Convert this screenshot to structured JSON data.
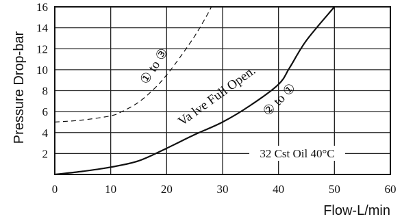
{
  "chart_data": {
    "type": "line",
    "xlabel": "Flow-L/min",
    "ylabel": "Pressure Drop-bar",
    "xlim": [
      0,
      60
    ],
    "ylim": [
      0,
      16
    ],
    "x_ticks": [
      "0",
      "10",
      "20",
      "30",
      "40",
      "50",
      "60"
    ],
    "y_ticks": [
      "2",
      "4",
      "6",
      "8",
      "10",
      "12",
      "14",
      "16"
    ],
    "grid": true,
    "series": [
      {
        "name": "2 to 1",
        "style": "solid",
        "x": [
          0,
          5,
          10,
          15,
          20,
          25,
          30,
          35,
          40,
          42,
          45,
          50
        ],
        "y": [
          0,
          0.3,
          0.7,
          1.3,
          2.5,
          3.8,
          5.0,
          6.6,
          8.6,
          10.2,
          12.8,
          16.0
        ]
      },
      {
        "name": "1 to 3",
        "style": "dashed",
        "x": [
          0,
          5,
          10,
          12,
          15,
          18,
          20,
          22,
          25,
          27,
          28
        ],
        "y": [
          5.0,
          5.2,
          5.6,
          6.0,
          6.9,
          8.3,
          9.5,
          10.9,
          13.2,
          15.0,
          16.0
        ]
      }
    ],
    "annotations": {
      "series_1_label": "① to ③",
      "series_2_label": "② to ①",
      "valve_note": "Va lve Full Open.",
      "oil_note": "32 Cst Oil 40°C"
    }
  }
}
